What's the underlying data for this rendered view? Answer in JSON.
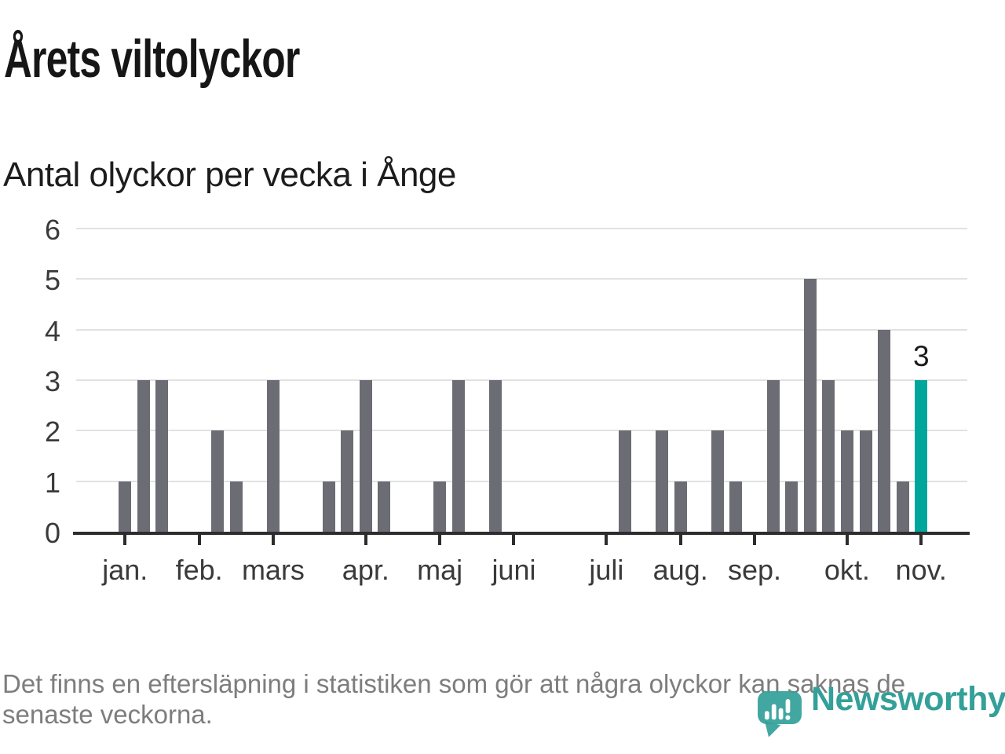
{
  "page": {
    "title": "Årets viltolyckor",
    "subtitle": "Antal olyckor per vecka i Ånge",
    "footer_lines": [
      "Det finns en eftersläpning i statistiken som gör att några olyckor kan saknas de",
      "senaste veckorna."
    ],
    "logo_text": "Newsworthy"
  },
  "colors": {
    "bar": "#6c6c75",
    "highlight": "#00a69c",
    "axis": "#2d2d2d",
    "gridline": "#e2e2e2",
    "label": "#3a3a3a",
    "value_label": "#1a1a1a",
    "footer_text": "#7d7d7d",
    "logo": "#33a099"
  },
  "chart_data": {
    "type": "bar",
    "title": "Årets viltolyckor",
    "subtitle": "Antal olyckor per vecka i Ånge",
    "x_unit": "vecka",
    "weekly_values": [
      1,
      3,
      3,
      0,
      0,
      2,
      1,
      0,
      3,
      0,
      0,
      1,
      2,
      3,
      1,
      0,
      0,
      1,
      3,
      0,
      3,
      0,
      0,
      0,
      0,
      0,
      0,
      2,
      0,
      2,
      1,
      0,
      2,
      1,
      0,
      3,
      1,
      5,
      3,
      2,
      2,
      4,
      1,
      3
    ],
    "month_ticks": [
      {
        "label": "jan.",
        "week": 0
      },
      {
        "label": "feb.",
        "week": 4
      },
      {
        "label": "mars",
        "week": 8
      },
      {
        "label": "apr.",
        "week": 13
      },
      {
        "label": "maj",
        "week": 17
      },
      {
        "label": "juni",
        "week": 21
      },
      {
        "label": "juli",
        "week": 26
      },
      {
        "label": "aug.",
        "week": 30
      },
      {
        "label": "sep.",
        "week": 34
      },
      {
        "label": "okt.",
        "week": 39
      },
      {
        "label": "nov.",
        "week": 43
      }
    ],
    "yticks": [
      0,
      1,
      2,
      3,
      4,
      5,
      6
    ],
    "ylim": [
      0,
      6
    ],
    "grid": true,
    "legend": false,
    "highlight_last_bar": true,
    "last_bar_label": "3"
  }
}
